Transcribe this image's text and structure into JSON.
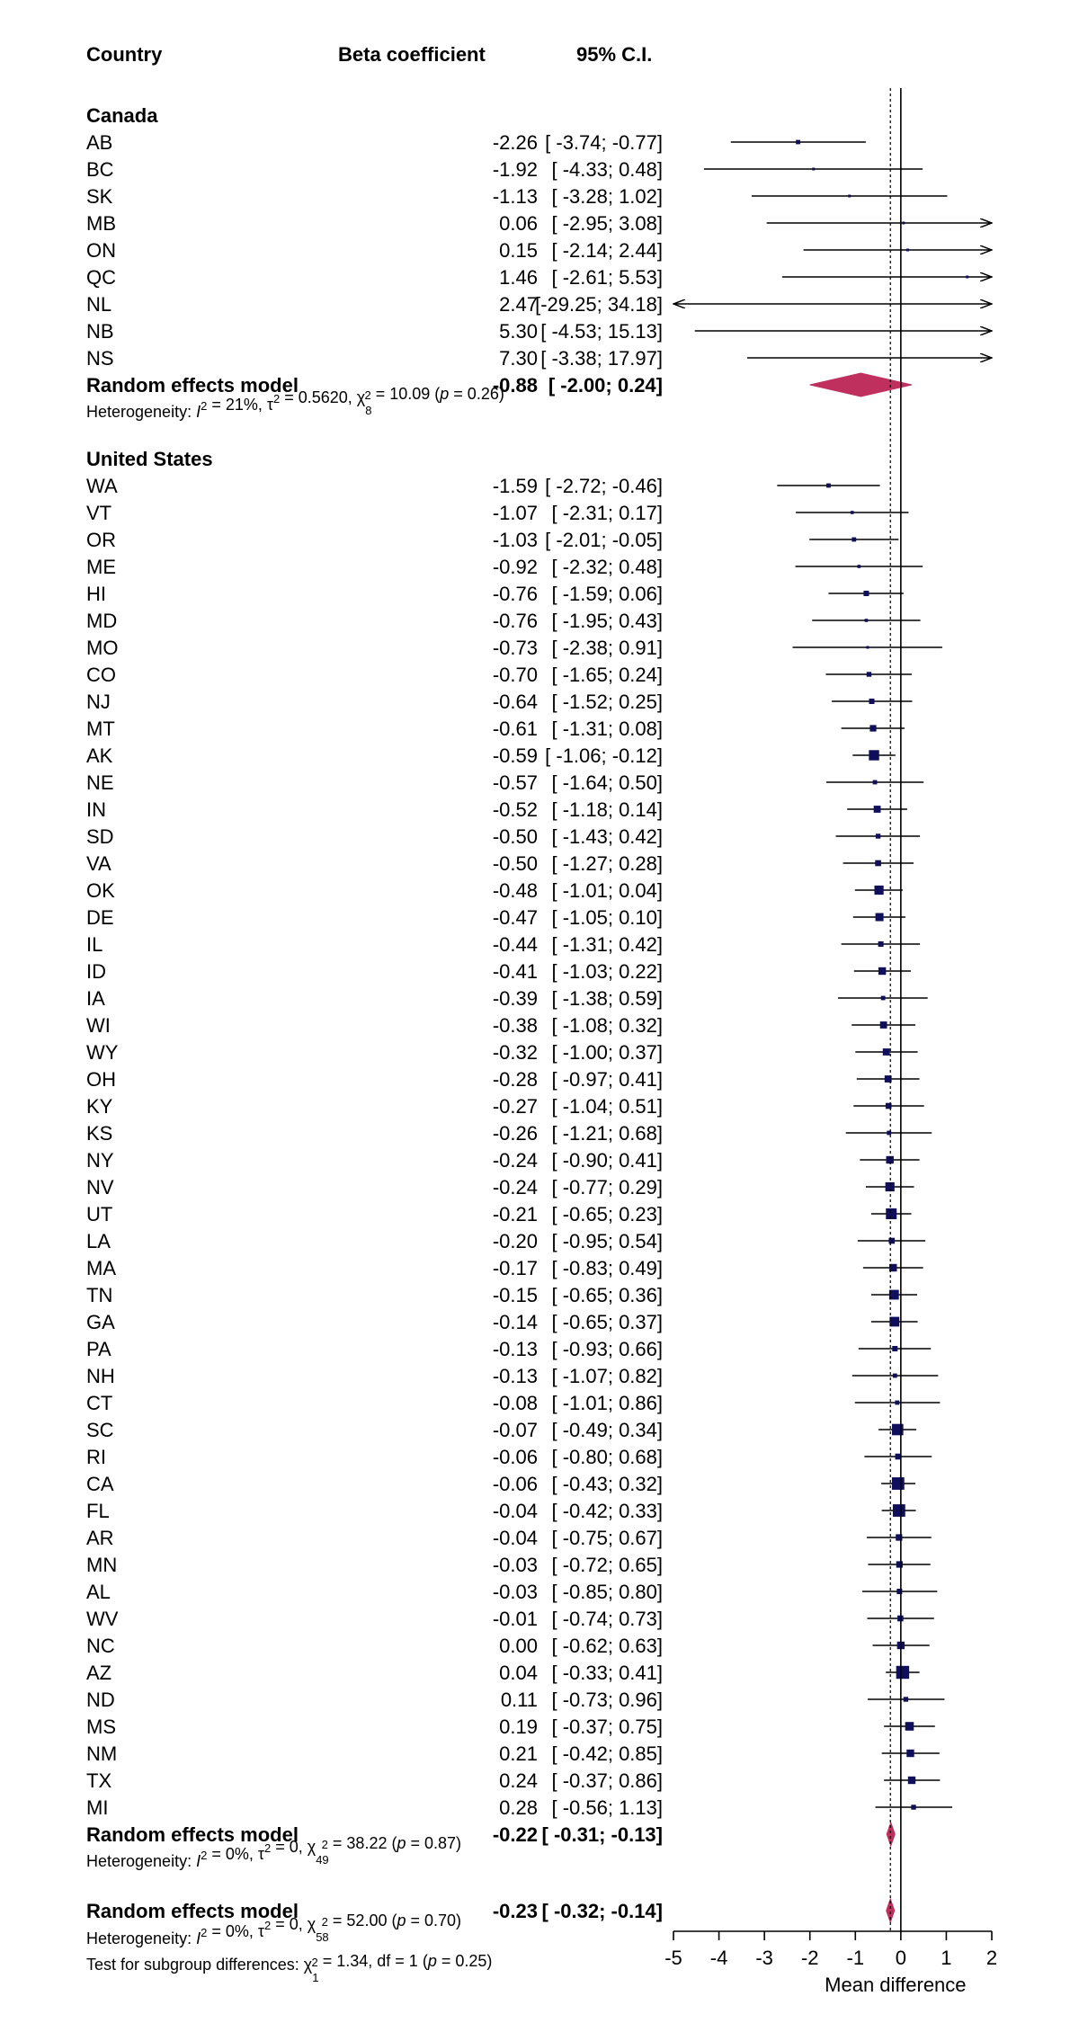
{
  "chart_data": {
    "type": "forest",
    "headers": {
      "study": "Country",
      "estimate": "Beta coefficient",
      "ci": "95% C.I."
    },
    "groups": [
      {
        "name": "Canada",
        "studies": [
          {
            "label": "AB",
            "est": "-2.26",
            "ci": "[ -3.74; -0.77]",
            "x": -2.26,
            "lo": -3.74,
            "hi": -0.77,
            "weight": 0.4
          },
          {
            "label": "BC",
            "est": "-1.92",
            "ci": "[ -4.33;  0.48]",
            "x": -1.92,
            "lo": -4.33,
            "hi": 0.48,
            "weight": 0.15
          },
          {
            "label": "SK",
            "est": "-1.13",
            "ci": "[ -3.28;  1.02]",
            "x": -1.13,
            "lo": -3.28,
            "hi": 1.02,
            "weight": 0.2
          },
          {
            "label": "MB",
            "est": "0.06",
            "ci": "[ -2.95;  3.08]",
            "x": 0.06,
            "lo": -2.95,
            "hi": 3.08,
            "weight": 0.1
          },
          {
            "label": "ON",
            "est": "0.15",
            "ci": "[ -2.14;  2.44]",
            "x": 0.15,
            "lo": -2.14,
            "hi": 2.44,
            "weight": 0.15
          },
          {
            "label": "QC",
            "est": "1.46",
            "ci": "[ -2.61;  5.53]",
            "x": 1.46,
            "lo": -2.61,
            "hi": 5.53,
            "weight": 0.1
          },
          {
            "label": "NL",
            "est": "2.47",
            "ci": "[-29.25; 34.18]",
            "x": 2.47,
            "lo": -29.25,
            "hi": 34.18,
            "weight": 0.0
          },
          {
            "label": "NB",
            "est": "5.30",
            "ci": "[ -4.53; 15.13]",
            "x": 5.3,
            "lo": -4.53,
            "hi": 15.13,
            "weight": 0.0
          },
          {
            "label": "NS",
            "est": "7.30",
            "ci": "[ -3.38; 17.97]",
            "x": 7.3,
            "lo": -3.38,
            "hi": 17.97,
            "weight": 0.0
          }
        ],
        "pooled": {
          "label": "Random effects model",
          "est": "-0.88",
          "ci": "[ -2.00;  0.24]",
          "x": -0.88,
          "lo": -2.0,
          "hi": 0.24
        },
        "heterogeneity": {
          "prefix": "Heterogeneity: ",
          "i2": "21%",
          "tau2": "0.5620",
          "chi_df": "8",
          "chi": "10.09",
          "p": "0.26"
        }
      },
      {
        "name": "United States",
        "studies": [
          {
            "label": "WA",
            "est": "-1.59",
            "ci": "[ -2.72; -0.46]",
            "x": -1.59,
            "lo": -2.72,
            "hi": -0.46,
            "weight": 0.4
          },
          {
            "label": "VT",
            "est": "-1.07",
            "ci": "[ -2.31;  0.17]",
            "x": -1.07,
            "lo": -2.31,
            "hi": 0.17,
            "weight": 0.3
          },
          {
            "label": "OR",
            "est": "-1.03",
            "ci": "[ -2.01; -0.05]",
            "x": -1.03,
            "lo": -2.01,
            "hi": -0.05,
            "weight": 0.4
          },
          {
            "label": "ME",
            "est": "-0.92",
            "ci": "[ -2.32;  0.48]",
            "x": -0.92,
            "lo": -2.32,
            "hi": 0.48,
            "weight": 0.3
          },
          {
            "label": "HI",
            "est": "-0.76",
            "ci": "[ -1.59;  0.06]",
            "x": -0.76,
            "lo": -1.59,
            "hi": 0.06,
            "weight": 0.5
          },
          {
            "label": "MD",
            "est": "-0.76",
            "ci": "[ -1.95;  0.43]",
            "x": -0.76,
            "lo": -1.95,
            "hi": 0.43,
            "weight": 0.3
          },
          {
            "label": "MO",
            "est": "-0.73",
            "ci": "[ -2.38;  0.91]",
            "x": -0.73,
            "lo": -2.38,
            "hi": 0.91,
            "weight": 0.2
          },
          {
            "label": "CO",
            "est": "-0.70",
            "ci": "[ -1.65;  0.24]",
            "x": -0.7,
            "lo": -1.65,
            "hi": 0.24,
            "weight": 0.45
          },
          {
            "label": "NJ",
            "est": "-0.64",
            "ci": "[ -1.52;  0.25]",
            "x": -0.64,
            "lo": -1.52,
            "hi": 0.25,
            "weight": 0.5
          },
          {
            "label": "MT",
            "est": "-0.61",
            "ci": "[ -1.31;  0.08]",
            "x": -0.61,
            "lo": -1.31,
            "hi": 0.08,
            "weight": 0.6
          },
          {
            "label": "AK",
            "est": "-0.59",
            "ci": "[ -1.06; -0.12]",
            "x": -0.59,
            "lo": -1.06,
            "hi": -0.12,
            "weight": 0.95
          },
          {
            "label": "NE",
            "est": "-0.57",
            "ci": "[ -1.64;  0.50]",
            "x": -0.57,
            "lo": -1.64,
            "hi": 0.5,
            "weight": 0.4
          },
          {
            "label": "IN",
            "est": "-0.52",
            "ci": "[ -1.18;  0.14]",
            "x": -0.52,
            "lo": -1.18,
            "hi": 0.14,
            "weight": 0.65
          },
          {
            "label": "SD",
            "est": "-0.50",
            "ci": "[ -1.43;  0.42]",
            "x": -0.5,
            "lo": -1.43,
            "hi": 0.42,
            "weight": 0.45
          },
          {
            "label": "VA",
            "est": "-0.50",
            "ci": "[ -1.27;  0.28]",
            "x": -0.5,
            "lo": -1.27,
            "hi": 0.28,
            "weight": 0.55
          },
          {
            "label": "OK",
            "est": "-0.48",
            "ci": "[ -1.01;  0.04]",
            "x": -0.48,
            "lo": -1.01,
            "hi": 0.04,
            "weight": 0.85
          },
          {
            "label": "DE",
            "est": "-0.47",
            "ci": "[ -1.05;  0.10]",
            "x": -0.47,
            "lo": -1.05,
            "hi": 0.1,
            "weight": 0.75
          },
          {
            "label": "IL",
            "est": "-0.44",
            "ci": "[ -1.31;  0.42]",
            "x": -0.44,
            "lo": -1.31,
            "hi": 0.42,
            "weight": 0.5
          },
          {
            "label": "ID",
            "est": "-0.41",
            "ci": "[ -1.03;  0.22]",
            "x": -0.41,
            "lo": -1.03,
            "hi": 0.22,
            "weight": 0.7
          },
          {
            "label": "IA",
            "est": "-0.39",
            "ci": "[ -1.38;  0.59]",
            "x": -0.39,
            "lo": -1.38,
            "hi": 0.59,
            "weight": 0.4
          },
          {
            "label": "WI",
            "est": "-0.38",
            "ci": "[ -1.08;  0.32]",
            "x": -0.38,
            "lo": -1.08,
            "hi": 0.32,
            "weight": 0.65
          },
          {
            "label": "WY",
            "est": "-0.32",
            "ci": "[ -1.00;  0.37]",
            "x": -0.32,
            "lo": -1.0,
            "hi": 0.37,
            "weight": 0.65
          },
          {
            "label": "OH",
            "est": "-0.28",
            "ci": "[ -0.97;  0.41]",
            "x": -0.28,
            "lo": -0.97,
            "hi": 0.41,
            "weight": 0.65
          },
          {
            "label": "KY",
            "est": "-0.27",
            "ci": "[ -1.04;  0.51]",
            "x": -0.27,
            "lo": -1.04,
            "hi": 0.51,
            "weight": 0.55
          },
          {
            "label": "KS",
            "est": "-0.26",
            "ci": "[ -1.21;  0.68]",
            "x": -0.26,
            "lo": -1.21,
            "hi": 0.68,
            "weight": 0.4
          },
          {
            "label": "NY",
            "est": "-0.24",
            "ci": "[ -0.90;  0.41]",
            "x": -0.24,
            "lo": -0.9,
            "hi": 0.41,
            "weight": 0.7
          },
          {
            "label": "NV",
            "est": "-0.24",
            "ci": "[ -0.77;  0.29]",
            "x": -0.24,
            "lo": -0.77,
            "hi": 0.29,
            "weight": 0.85
          },
          {
            "label": "UT",
            "est": "-0.21",
            "ci": "[ -0.65;  0.23]",
            "x": -0.21,
            "lo": -0.65,
            "hi": 0.23,
            "weight": 1.0
          },
          {
            "label": "LA",
            "est": "-0.20",
            "ci": "[ -0.95;  0.54]",
            "x": -0.2,
            "lo": -0.95,
            "hi": 0.54,
            "weight": 0.55
          },
          {
            "label": "MA",
            "est": "-0.17",
            "ci": "[ -0.83;  0.49]",
            "x": -0.17,
            "lo": -0.83,
            "hi": 0.49,
            "weight": 0.7
          },
          {
            "label": "TN",
            "est": "-0.15",
            "ci": "[ -0.65;  0.36]",
            "x": -0.15,
            "lo": -0.65,
            "hi": 0.36,
            "weight": 0.9
          },
          {
            "label": "GA",
            "est": "-0.14",
            "ci": "[ -0.65;  0.37]",
            "x": -0.14,
            "lo": -0.65,
            "hi": 0.37,
            "weight": 0.9
          },
          {
            "label": "PA",
            "est": "-0.13",
            "ci": "[ -0.93;  0.66]",
            "x": -0.13,
            "lo": -0.93,
            "hi": 0.66,
            "weight": 0.5
          },
          {
            "label": "NH",
            "est": "-0.13",
            "ci": "[ -1.07;  0.82]",
            "x": -0.13,
            "lo": -1.07,
            "hi": 0.82,
            "weight": 0.4
          },
          {
            "label": "CT",
            "est": "-0.08",
            "ci": "[ -1.01;  0.86]",
            "x": -0.08,
            "lo": -1.01,
            "hi": 0.86,
            "weight": 0.4
          },
          {
            "label": "SC",
            "est": "-0.07",
            "ci": "[ -0.49;  0.34]",
            "x": -0.07,
            "lo": -0.49,
            "hi": 0.34,
            "weight": 1.05
          },
          {
            "label": "RI",
            "est": "-0.06",
            "ci": "[ -0.80;  0.68]",
            "x": -0.06,
            "lo": -0.8,
            "hi": 0.68,
            "weight": 0.55
          },
          {
            "label": "CA",
            "est": "-0.06",
            "ci": "[ -0.43;  0.32]",
            "x": -0.06,
            "lo": -0.43,
            "hi": 0.32,
            "weight": 1.15
          },
          {
            "label": "FL",
            "est": "-0.04",
            "ci": "[ -0.42;  0.33]",
            "x": -0.04,
            "lo": -0.42,
            "hi": 0.33,
            "weight": 1.15
          },
          {
            "label": "AR",
            "est": "-0.04",
            "ci": "[ -0.75;  0.67]",
            "x": -0.04,
            "lo": -0.75,
            "hi": 0.67,
            "weight": 0.6
          },
          {
            "label": "MN",
            "est": "-0.03",
            "ci": "[ -0.72;  0.65]",
            "x": -0.03,
            "lo": -0.72,
            "hi": 0.65,
            "weight": 0.6
          },
          {
            "label": "AL",
            "est": "-0.03",
            "ci": "[ -0.85;  0.80]",
            "x": -0.03,
            "lo": -0.85,
            "hi": 0.8,
            "weight": 0.5
          },
          {
            "label": "WV",
            "est": "-0.01",
            "ci": "[ -0.74;  0.73]",
            "x": -0.01,
            "lo": -0.74,
            "hi": 0.73,
            "weight": 0.55
          },
          {
            "label": "NC",
            "est": "0.00",
            "ci": "[ -0.62;  0.63]",
            "x": 0.0,
            "lo": -0.62,
            "hi": 0.63,
            "weight": 0.7
          },
          {
            "label": "AZ",
            "est": "0.04",
            "ci": "[ -0.33;  0.41]",
            "x": 0.04,
            "lo": -0.33,
            "hi": 0.41,
            "weight": 1.2
          },
          {
            "label": "ND",
            "est": "0.11",
            "ci": "[ -0.73;  0.96]",
            "x": 0.11,
            "lo": -0.73,
            "hi": 0.96,
            "weight": 0.45
          },
          {
            "label": "MS",
            "est": "0.19",
            "ci": "[ -0.37;  0.75]",
            "x": 0.19,
            "lo": -0.37,
            "hi": 0.75,
            "weight": 0.8
          },
          {
            "label": "NM",
            "est": "0.21",
            "ci": "[ -0.42;  0.85]",
            "x": 0.21,
            "lo": -0.42,
            "hi": 0.85,
            "weight": 0.7
          },
          {
            "label": "TX",
            "est": "0.24",
            "ci": "[ -0.37;  0.86]",
            "x": 0.24,
            "lo": -0.37,
            "hi": 0.86,
            "weight": 0.7
          },
          {
            "label": "MI",
            "est": "0.28",
            "ci": "[ -0.56;  1.13]",
            "x": 0.28,
            "lo": -0.56,
            "hi": 1.13,
            "weight": 0.45
          }
        ],
        "pooled": {
          "label": "Random effects model",
          "est": "-0.22",
          "ci": "[ -0.31; -0.13]",
          "x": -0.22,
          "lo": -0.31,
          "hi": -0.13
        },
        "heterogeneity": {
          "prefix": "Heterogeneity: ",
          "i2": "0%",
          "tau2": "0",
          "chi_df": "49",
          "chi": "38.22",
          "p": "0.87"
        }
      }
    ],
    "overall": {
      "label": "Random effects model",
      "est": "-0.23",
      "ci": "[ -0.32; -0.14]",
      "x": -0.23,
      "lo": -0.32,
      "hi": -0.14,
      "heterogeneity": {
        "prefix": "Heterogeneity: ",
        "i2": "0%",
        "tau2": "0",
        "chi_df": "58",
        "chi": "52.00",
        "p": "0.70"
      },
      "subgroup_test": {
        "prefix": "Test for subgroup differences: ",
        "chi_df": "1",
        "chi": "1.34",
        "df": "1",
        "p": "0.25"
      }
    },
    "xaxis": {
      "label": "Mean difference",
      "ticks": [
        -5,
        -4,
        -3,
        -2,
        -1,
        0,
        1,
        2
      ],
      "range": [
        -5,
        2
      ]
    },
    "reference_line": 0,
    "colors": {
      "square": "#0f0f5c",
      "diamond": "#c0305f",
      "line": "#000000"
    }
  }
}
